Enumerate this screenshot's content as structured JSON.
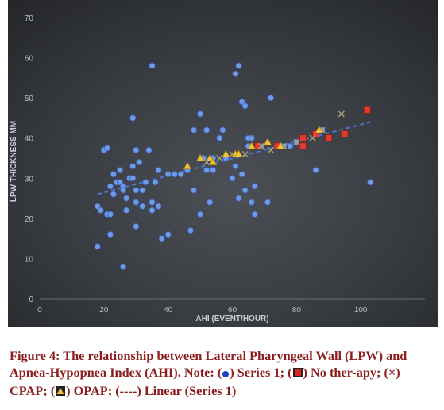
{
  "chart_data": {
    "type": "scatter",
    "title": "",
    "xlabel": "AHI (EVENT/HOUR)",
    "ylabel": "LPW THICKNESS MM",
    "xlim": [
      0,
      120
    ],
    "ylim": [
      0,
      70
    ],
    "xticks": [
      0,
      20,
      40,
      60,
      80,
      100
    ],
    "yticks": [
      0,
      10,
      20,
      30,
      40,
      50,
      60,
      70
    ],
    "grid": false,
    "legend": "none",
    "background_color": "#2f3237",
    "series": [
      {
        "marker": "circle",
        "color": "#6f9ae8",
        "points": [
          [
            18,
            13
          ],
          [
            18,
            23
          ],
          [
            19,
            22
          ],
          [
            20,
            37
          ],
          [
            21,
            37.5
          ],
          [
            21,
            21
          ],
          [
            22,
            16
          ],
          [
            22,
            21
          ],
          [
            22,
            28
          ],
          [
            23,
            31
          ],
          [
            23,
            26
          ],
          [
            24,
            29
          ],
          [
            25,
            32
          ],
          [
            25,
            29
          ],
          [
            26,
            8
          ],
          [
            26,
            28
          ],
          [
            26,
            27
          ],
          [
            27,
            25
          ],
          [
            27,
            22
          ],
          [
            28,
            30
          ],
          [
            29,
            33
          ],
          [
            29,
            45
          ],
          [
            29,
            30
          ],
          [
            30,
            27
          ],
          [
            30,
            37
          ],
          [
            30,
            24
          ],
          [
            30,
            18
          ],
          [
            31,
            34
          ],
          [
            32,
            27
          ],
          [
            32,
            23
          ],
          [
            33,
            29
          ],
          [
            34,
            37
          ],
          [
            35,
            22
          ],
          [
            35,
            58
          ],
          [
            35,
            24
          ],
          [
            36,
            29
          ],
          [
            37,
            32
          ],
          [
            37,
            23
          ],
          [
            38,
            15
          ],
          [
            40,
            31
          ],
          [
            40,
            16
          ],
          [
            42,
            31
          ],
          [
            44,
            31
          ],
          [
            46,
            32
          ],
          [
            47,
            17
          ],
          [
            48,
            27
          ],
          [
            48,
            42
          ],
          [
            50,
            21
          ],
          [
            50,
            46
          ],
          [
            51,
            35
          ],
          [
            52,
            32
          ],
          [
            52,
            42
          ],
          [
            53,
            24
          ],
          [
            54,
            35
          ],
          [
            54,
            32
          ],
          [
            56,
            40
          ],
          [
            57,
            42
          ],
          [
            58,
            35
          ],
          [
            60,
            30
          ],
          [
            61,
            56
          ],
          [
            61,
            33
          ],
          [
            62,
            25
          ],
          [
            62,
            58
          ],
          [
            63,
            31
          ],
          [
            63,
            49
          ],
          [
            64,
            27
          ],
          [
            64,
            48
          ],
          [
            65,
            40
          ],
          [
            65,
            38
          ],
          [
            66,
            24
          ],
          [
            66,
            40
          ],
          [
            67,
            28
          ],
          [
            67,
            21
          ],
          [
            68,
            38
          ],
          [
            69,
            38
          ],
          [
            71,
            24
          ],
          [
            72,
            50
          ],
          [
            74,
            38
          ],
          [
            76,
            38
          ],
          [
            78,
            38
          ],
          [
            80,
            39
          ],
          [
            86,
            32
          ],
          [
            88,
            42
          ],
          [
            103,
            29
          ]
        ]
      },
      {
        "marker": "square",
        "color": "#e53b2e",
        "points": [
          [
            68,
            38
          ],
          [
            74,
            38
          ],
          [
            82,
            38
          ],
          [
            82,
            40
          ],
          [
            86,
            41
          ],
          [
            90,
            40
          ],
          [
            95,
            41
          ],
          [
            102,
            47
          ]
        ]
      },
      {
        "marker": "x",
        "color": "#a8a47a",
        "points": [
          [
            52,
            34
          ],
          [
            56,
            35
          ],
          [
            60,
            36
          ],
          [
            64,
            36
          ],
          [
            69,
            38
          ],
          [
            72,
            37
          ],
          [
            76,
            38
          ],
          [
            80,
            39
          ],
          [
            85,
            40
          ],
          [
            88,
            42
          ],
          [
            94,
            46
          ]
        ]
      },
      {
        "marker": "triangle",
        "color": "#f2c33a",
        "points": [
          [
            46,
            33
          ],
          [
            50,
            35
          ],
          [
            53,
            35
          ],
          [
            54,
            34
          ],
          [
            58,
            36
          ],
          [
            61,
            36
          ],
          [
            62,
            36
          ],
          [
            66,
            38
          ],
          [
            71,
            39
          ],
          [
            75,
            38
          ],
          [
            87,
            42
          ]
        ]
      }
    ],
    "trendline": {
      "type": "linear",
      "color": "#4a76d1",
      "style": "dashed",
      "from": [
        18,
        26
      ],
      "to": [
        103,
        44
      ]
    }
  },
  "caption": {
    "lead": "Figure 4: The relationship between Lateral Pharyngeal Wall (LPW) and Apnea-Hypopnea Index (AHI). Note: (",
    "part1": ") Series 1; (",
    "part2": ") No ther-apy; (×) CPAP; (",
    "part3": ") OPAP; (----) Linear (Series 1)"
  }
}
